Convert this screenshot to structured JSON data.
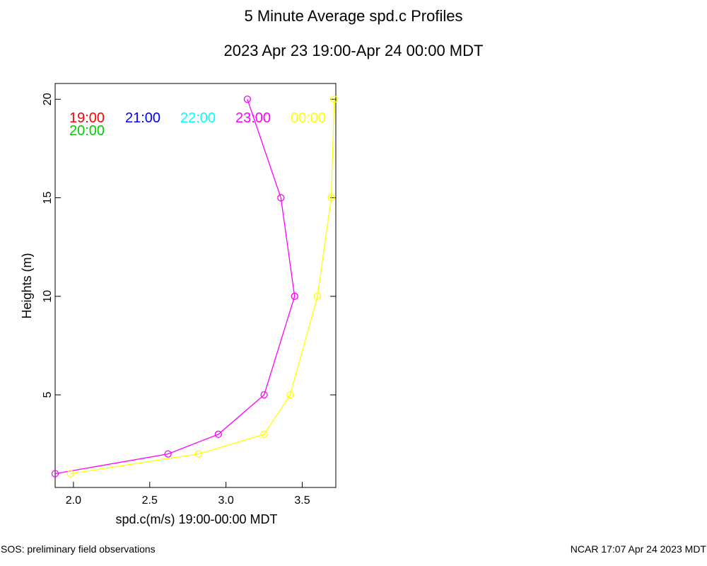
{
  "chart_data": {
    "type": "line",
    "title": "5 Minute Average spd.c Profiles",
    "subtitle": "2023 Apr 23 19:00-Apr 24 00:00 MDT",
    "xlabel": "spd.c(m/s) 19:00-00:00 MDT",
    "ylabel": "Heights (m)",
    "xlim": [
      1.88,
      3.72
    ],
    "ylim": [
      0.3,
      20.8
    ],
    "xticks": [
      "2.0",
      "2.5",
      "3.0",
      "3.5"
    ],
    "yticks": [
      "5",
      "10",
      "15",
      "20"
    ],
    "legend": [
      {
        "label": "19:00",
        "color": "#ff0000"
      },
      {
        "label": "21:00",
        "color": "#0000ff"
      },
      {
        "label": "22:00",
        "color": "#00ffff"
      },
      {
        "label": "23:00",
        "color": "#ff00ff"
      },
      {
        "label": "00:00",
        "color": "#ffff00"
      },
      {
        "label": "20:00",
        "color": "#00cc00"
      }
    ],
    "series": [
      {
        "name": "23:00",
        "color": "#ff00ff",
        "points": [
          [
            1.88,
            1
          ],
          [
            2.62,
            2
          ],
          [
            2.95,
            3
          ],
          [
            3.25,
            5
          ],
          [
            3.45,
            10
          ],
          [
            3.36,
            15
          ],
          [
            3.14,
            20
          ]
        ]
      },
      {
        "name": "00:00",
        "color": "#ffff00",
        "points": [
          [
            1.98,
            1
          ],
          [
            2.82,
            2
          ],
          [
            3.25,
            3
          ],
          [
            3.42,
            5
          ],
          [
            3.6,
            10
          ],
          [
            3.69,
            15
          ],
          [
            3.71,
            20
          ]
        ]
      }
    ]
  },
  "footer": {
    "left": "SOS: preliminary field observations",
    "right": "NCAR 17:07 Apr 24 2023 MDT"
  }
}
